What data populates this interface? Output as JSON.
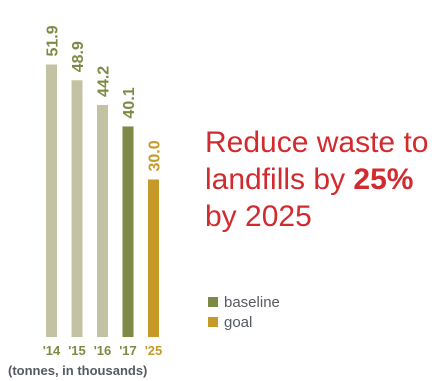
{
  "chart_data": {
    "type": "bar",
    "categories": [
      "'14",
      "'15",
      "'16",
      "'17",
      "'25"
    ],
    "values": [
      51.9,
      48.9,
      44.2,
      40.1,
      30.0
    ],
    "value_labels": [
      "51.9",
      "48.9",
      "44.2",
      "40.1",
      "30.0"
    ],
    "bar_kinds": [
      "baseline-past",
      "baseline-past",
      "baseline-past",
      "baseline",
      "goal"
    ],
    "legend": [
      {
        "label": "baseline",
        "color": "#7d8a45"
      },
      {
        "label": "goal",
        "color": "#c59a29"
      }
    ],
    "colors": {
      "baseline-past": "#c3c2a3",
      "baseline": "#7d8a45",
      "goal": "#c59a29",
      "past_label": "#7d8a45",
      "tick_label": "#7d8a45",
      "goal_tick": "#c59a29"
    },
    "ylim": [
      0,
      60
    ],
    "grid": false,
    "units_note": "(tonnes, in thousands)"
  },
  "headline": {
    "before": "Reduce waste to landfills by ",
    "highlight": "25%",
    "after": " by 2025",
    "color": "#d12a2f"
  }
}
